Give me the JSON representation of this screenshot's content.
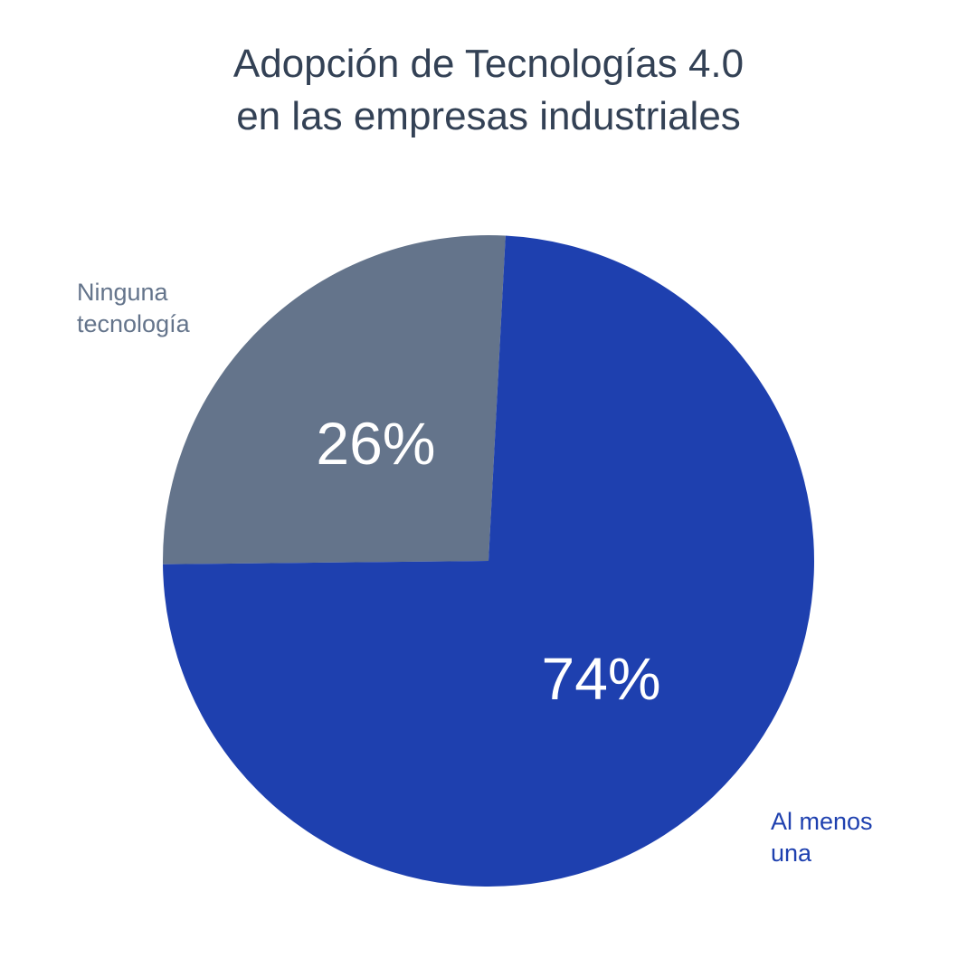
{
  "chart_data": {
    "type": "pie",
    "title": [
      "Adopción de Tecnologías 4.0",
      "en las empresas industriales"
    ],
    "categories": [
      {
        "label": [
          "Ninguna",
          "tecnología"
        ],
        "value": 26,
        "display": "26%",
        "color": "#64748b"
      },
      {
        "label": [
          "Al menos",
          "una"
        ],
        "value": 74,
        "display": "74%",
        "color": "#1e40af"
      }
    ],
    "start": "top, clockwise from 12 o'clock",
    "legend": "none (direct labels)",
    "value_label_color": "#ffffff"
  }
}
